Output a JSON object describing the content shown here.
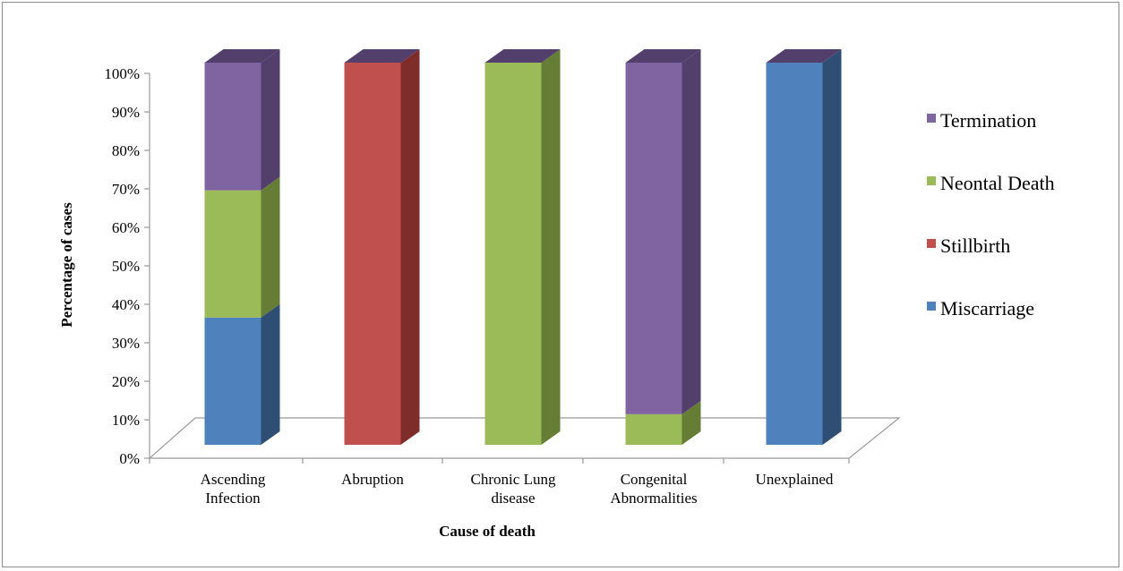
{
  "chart_data": {
    "type": "bar",
    "stacked": true,
    "percent": true,
    "style": "3d-column",
    "xlabel": "Cause of death",
    "ylabel": "Percentage of cases",
    "ylim": [
      0,
      100
    ],
    "yticks": [
      "0%",
      "10%",
      "20%",
      "30%",
      "40%",
      "50%",
      "60%",
      "70%",
      "80%",
      "90%",
      "100%"
    ],
    "categories": [
      [
        "Ascending",
        "Infection"
      ],
      [
        "Abruption"
      ],
      [
        "Chronic Lung",
        "disease"
      ],
      [
        "Congenital",
        "Abnormalities"
      ],
      [
        "Unexplained"
      ]
    ],
    "series": [
      {
        "name": "Miscarriage",
        "color": "#4f81bd",
        "side_color": "#2f4e74",
        "values": [
          33.3,
          0,
          0,
          0,
          100
        ]
      },
      {
        "name": "Neontal Death",
        "color": "#9bbb59",
        "side_color": "#667d36",
        "values": [
          33.3,
          0,
          100,
          8,
          0
        ]
      },
      {
        "name": "Stillbirth",
        "color": "#c0504d",
        "side_color": "#7e2d2b",
        "values": [
          0,
          100,
          0,
          0,
          0
        ]
      },
      {
        "name": "Termination",
        "color": "#8064a2",
        "side_color": "#523f6b",
        "values": [
          33.4,
          0,
          0,
          92,
          0
        ]
      }
    ],
    "legend": {
      "position": "right",
      "order": [
        "Termination",
        "Neontal Death",
        "Stillbirth",
        "Miscarriage"
      ]
    },
    "grid": false
  }
}
